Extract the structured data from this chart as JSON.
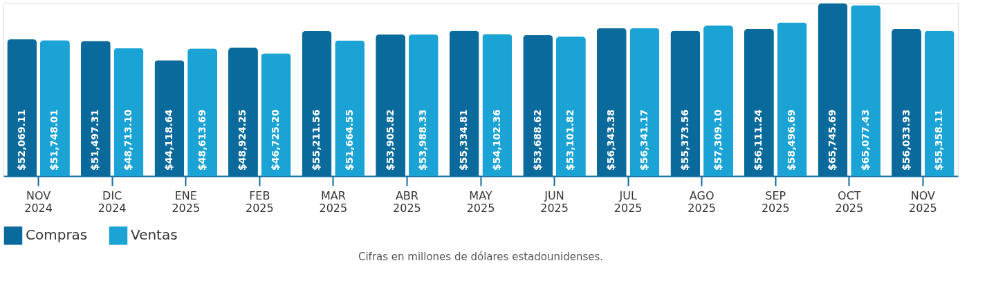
{
  "chart_data": {
    "type": "bar",
    "categories": [
      "NOV 2024",
      "DIC 2024",
      "ENE 2025",
      "FEB 2025",
      "MAR 2025",
      "ABR 2025",
      "MAY 2025",
      "JUN 2025",
      "JUL 2025",
      "AGO 2025",
      "SEP 2025",
      "OCT 2025",
      "NOV 2025"
    ],
    "series": [
      {
        "name": "Compras",
        "color": "#0a6a9c",
        "values": [
          52069.11,
          51497.31,
          44118.64,
          48924.25,
          55211.56,
          53905.82,
          55334.81,
          53688.62,
          56343.38,
          55373.56,
          56111.24,
          65745.69,
          56033.93
        ],
        "value_labels": [
          "$52,069.11",
          "$51,497.31",
          "$44,118.64",
          "$48,924.25",
          "$55,211.56",
          "$53,905.82",
          "$55,334.81",
          "$53,688.62",
          "$56,343.38",
          "$55,373.56",
          "$56,111.24",
          "$65,745.69",
          "$56,033.93"
        ]
      },
      {
        "name": "Ventas",
        "color": "#1aa3d4",
        "values": [
          51748.01,
          48713.1,
          48613.69,
          46725.2,
          51664.55,
          53988.33,
          54102.36,
          53101.82,
          56341.17,
          57309.1,
          58496.69,
          65077.43,
          55358.11
        ],
        "value_labels": [
          "$51,748.01",
          "$48,713.10",
          "$48,613.69",
          "$46,725.20",
          "$51,664.55",
          "$53,988.33",
          "$54,102.36",
          "$53,101.82",
          "$56,341.17",
          "$57,309.10",
          "$58,496.69",
          "$65,077.43",
          "$55,358.11"
        ]
      }
    ],
    "legend": "bottom",
    "grid": false,
    "annotations": [
      "Cifras en millones de dólares estadounidenses."
    ]
  }
}
